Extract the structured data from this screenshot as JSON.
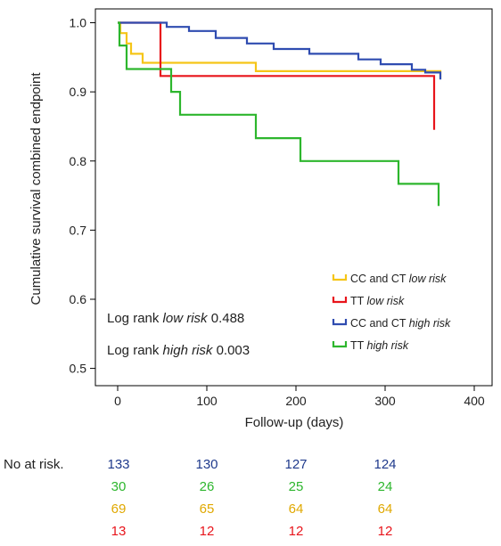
{
  "chart_data": {
    "type": "line",
    "step": true,
    "xlabel": "Follow-up (days)",
    "ylabel": "Cumulative survival combined endpoint",
    "xlim": [
      -25,
      420
    ],
    "ylim": [
      0.475,
      1.02
    ],
    "xticks": [
      0,
      100,
      200,
      300,
      400
    ],
    "yticks": [
      0.5,
      0.6,
      0.7,
      0.8,
      0.9,
      1.0
    ],
    "xtick_labels": [
      "0",
      "100",
      "200",
      "300",
      "400"
    ],
    "ytick_labels": [
      "0.5",
      "0.6",
      "0.7",
      "0.8",
      "0.9",
      "1.0"
    ],
    "grid": false,
    "legend_position": "bottom-right",
    "series": [
      {
        "name_main": "CC and CT",
        "name_emph": "low risk",
        "color": "#F5C518",
        "points": [
          [
            0,
            1.0
          ],
          [
            3,
            0.985
          ],
          [
            10,
            0.97
          ],
          [
            15,
            0.955
          ],
          [
            28,
            0.942
          ],
          [
            110,
            0.942
          ],
          [
            155,
            0.93
          ],
          [
            250,
            0.93
          ],
          [
            362,
            0.93
          ],
          [
            362,
            0.92
          ]
        ]
      },
      {
        "name_main": "TT",
        "name_emph": "low risk",
        "color": "#E8141B",
        "points": [
          [
            0,
            1.0
          ],
          [
            48,
            1.0
          ],
          [
            48,
            0.923
          ],
          [
            355,
            0.923
          ],
          [
            355,
            0.845
          ]
        ]
      },
      {
        "name_main": "CC and CT",
        "name_emph": "high risk",
        "color": "#2F4CB0",
        "points": [
          [
            0,
            1.0
          ],
          [
            40,
            1.0
          ],
          [
            55,
            0.994
          ],
          [
            80,
            0.988
          ],
          [
            110,
            0.978
          ],
          [
            145,
            0.97
          ],
          [
            175,
            0.962
          ],
          [
            215,
            0.955
          ],
          [
            270,
            0.947
          ],
          [
            295,
            0.94
          ],
          [
            330,
            0.932
          ],
          [
            345,
            0.928
          ],
          [
            362,
            0.925
          ],
          [
            362,
            0.918
          ]
        ]
      },
      {
        "name_main": "TT",
        "name_emph": "high risk",
        "color": "#2DB62D",
        "points": [
          [
            0,
            1.0
          ],
          [
            2,
            0.967
          ],
          [
            10,
            0.933
          ],
          [
            60,
            0.933
          ],
          [
            60,
            0.9
          ],
          [
            70,
            0.9
          ],
          [
            70,
            0.867
          ],
          [
            155,
            0.867
          ],
          [
            155,
            0.833
          ],
          [
            205,
            0.833
          ],
          [
            205,
            0.8
          ],
          [
            315,
            0.8
          ],
          [
            315,
            0.767
          ],
          [
            360,
            0.767
          ],
          [
            360,
            0.735
          ]
        ]
      }
    ],
    "annotations": [
      {
        "prefix": "Log rank ",
        "emph": "low risk",
        "value": " 0.488"
      },
      {
        "prefix": "Log rank ",
        "emph": "high risk",
        "value": " 0.003"
      }
    ]
  },
  "at_risk": {
    "label": "No at risk.",
    "rows": [
      {
        "color": "#1F3A8C",
        "values": [
          "133",
          "130",
          "127",
          "124"
        ]
      },
      {
        "color": "#2DB62D",
        "values": [
          "30",
          "26",
          "25",
          "24"
        ]
      },
      {
        "color": "#E0A800",
        "values": [
          "69",
          "65",
          "64",
          "64"
        ]
      },
      {
        "color": "#E8141B",
        "values": [
          "13",
          "12",
          "12",
          "12"
        ]
      }
    ]
  }
}
